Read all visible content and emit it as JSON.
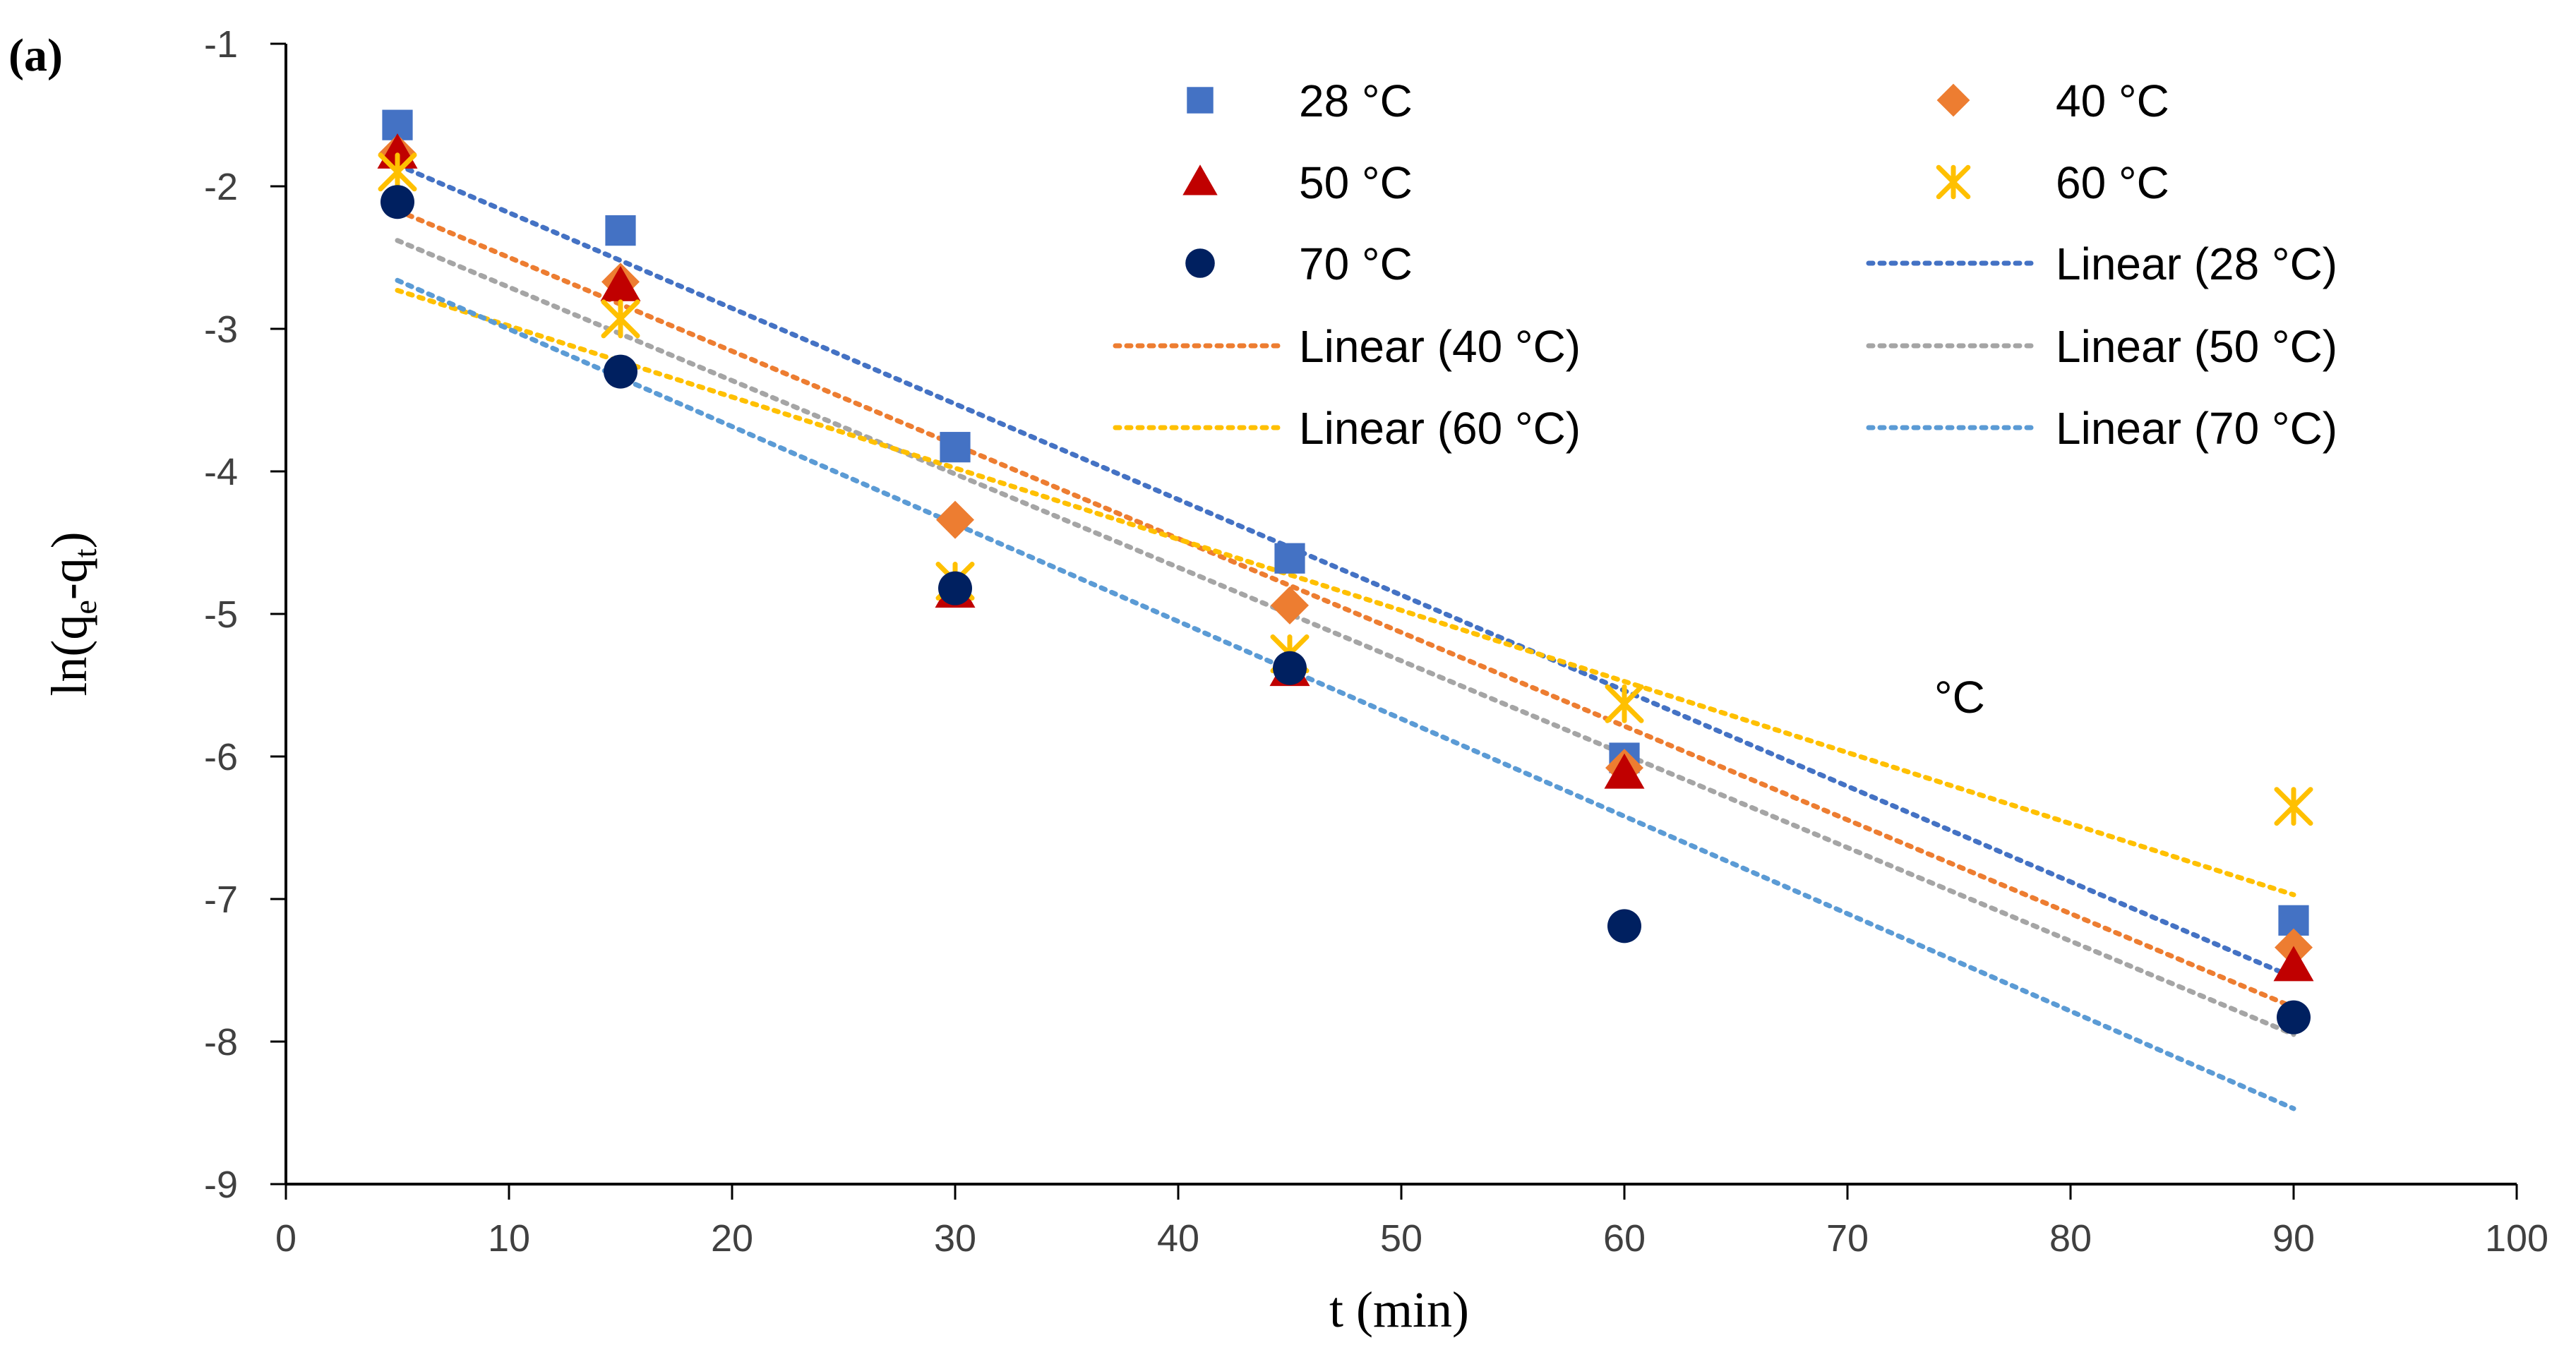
{
  "chart_data": {
    "type": "scatter",
    "panel_label": "(a)",
    "title": "",
    "xlabel": "t (min)",
    "ylabel_parts": {
      "main": "ln(q",
      "sub1": "e",
      "mid": "-q",
      "sub2": "t",
      "end": ")"
    },
    "xlim": [
      0,
      100
    ],
    "ylim": [
      -9,
      -1
    ],
    "xticks": [
      "0",
      "10",
      "20",
      "30",
      "40",
      "50",
      "60",
      "70",
      "80",
      "90",
      "100"
    ],
    "yticks": [
      "-1",
      "-2",
      "-3",
      "-4",
      "-5",
      "-6",
      "-7",
      "-8",
      "-9"
    ],
    "grid": false,
    "stray_text": "°C",
    "series": [
      {
        "name": "28 °C",
        "marker": "square",
        "color": "#4472C4",
        "x": [
          5,
          15,
          30,
          45,
          60,
          90
        ],
        "y": [
          -1.57,
          -2.31,
          -3.83,
          -4.61,
          -6.01,
          -7.15
        ],
        "trend": {
          "name": "Linear (28 °C)",
          "color": "#4472C4",
          "x": [
            5,
            90
          ],
          "y": [
            -1.85,
            -7.55
          ]
        }
      },
      {
        "name": "40 °C",
        "marker": "diamond",
        "color": "#ED7D31",
        "x": [
          5,
          15,
          30,
          45,
          60,
          90
        ],
        "y": [
          -1.77,
          -2.67,
          -4.34,
          -4.94,
          -6.08,
          -7.34
        ],
        "trend": {
          "name": "Linear (40  °C)",
          "color": "#ED7D31",
          "x": [
            5,
            90
          ],
          "y": [
            -2.17,
            -7.76
          ]
        }
      },
      {
        "name": "50 °C",
        "marker": "triangle",
        "color": "#C00000",
        "x": [
          5,
          15,
          30,
          45,
          60,
          90
        ],
        "y": [
          -1.77,
          -2.7,
          -4.85,
          -5.4,
          -6.12,
          -7.47
        ],
        "trend": {
          "name": "Linear (50 °C)",
          "color": "#A5A5A5",
          "x": [
            5,
            90
          ],
          "y": [
            -2.38,
            -7.95
          ]
        }
      },
      {
        "name": "60 °C",
        "marker": "asterisk",
        "color": "#FFC000",
        "x": [
          5,
          15,
          30,
          45,
          60,
          90
        ],
        "y": [
          -1.9,
          -2.93,
          -4.77,
          -5.28,
          -5.63,
          -6.35
        ],
        "trend": {
          "name": "Linear (60  °C)",
          "color": "#FFC000",
          "x": [
            5,
            90
          ],
          "y": [
            -2.73,
            -6.97
          ]
        }
      },
      {
        "name": "70 °C",
        "marker": "circle",
        "color": "#002060",
        "x": [
          5,
          15,
          30,
          45,
          60,
          90
        ],
        "y": [
          -2.11,
          -3.3,
          -4.82,
          -5.38,
          -7.19,
          -7.83
        ],
        "trend": {
          "name": "Linear (70 °C)",
          "color": "#5B9BD5",
          "x": [
            5,
            90
          ],
          "y": [
            -2.66,
            -8.47
          ]
        }
      }
    ],
    "legend": {
      "position": "top-right",
      "entries": [
        {
          "label": "28  °C",
          "symbol": "square",
          "color": "#4472C4"
        },
        {
          "label": "40  °C",
          "symbol": "diamond",
          "color": "#ED7D31"
        },
        {
          "label": "50  °C",
          "symbol": "triangle",
          "color": "#C00000"
        },
        {
          "label": "60  °C",
          "symbol": "asterisk",
          "color": "#FFC000"
        },
        {
          "label": "70  °C",
          "symbol": "circle",
          "color": "#002060"
        },
        {
          "label": "Linear (28  °C)",
          "symbol": "dotted-line",
          "color": "#4472C4"
        },
        {
          "label": "Linear (40   °C)",
          "symbol": "dotted-line",
          "color": "#ED7D31"
        },
        {
          "label": "Linear (50  °C)",
          "symbol": "dotted-line",
          "color": "#A5A5A5"
        },
        {
          "label": "Linear (60  °C)",
          "symbol": "dotted-line",
          "color": "#FFC000"
        },
        {
          "label": "Linear (70  °C)",
          "symbol": "dotted-line",
          "color": "#5B9BD5"
        }
      ]
    }
  }
}
